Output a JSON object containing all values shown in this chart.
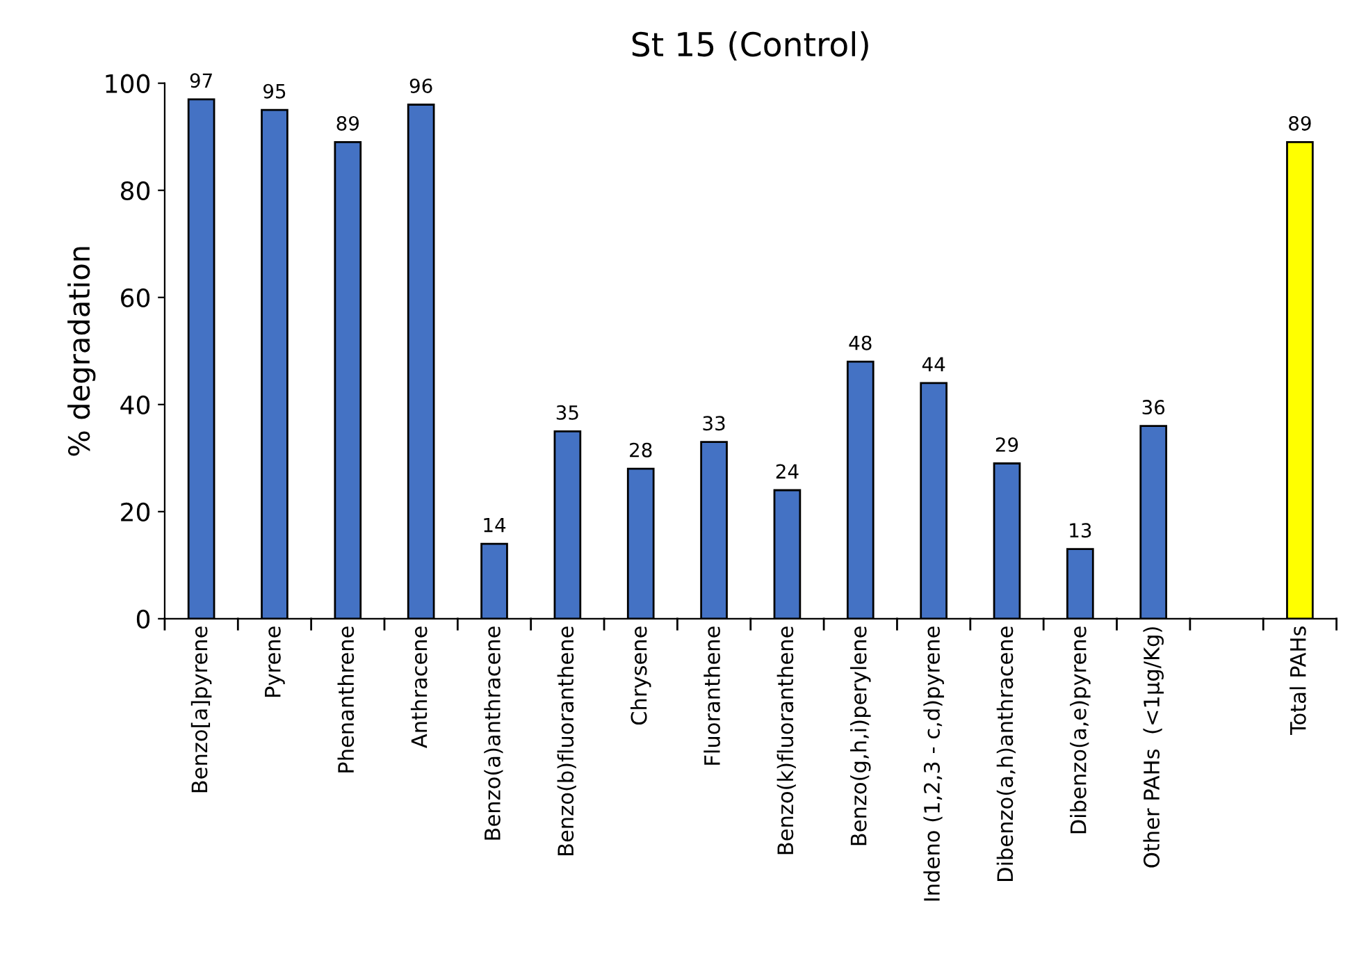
{
  "chart_data": {
    "type": "bar",
    "title": "St 15 (Control)",
    "ylabel": "% degradation",
    "categories": [
      "Benzo[a]pyrene",
      "Pyrene",
      "Phenanthrene",
      "Anthracene",
      "Benzo(a)anthracene",
      "Benzo(b)fluoranthene",
      "Chrysene",
      "Fluoranthene",
      "Benzo(k)fluoranthene",
      "Benzo(g,h,i)perylene",
      "Indeno (1,2,3 - c,d)pyrene",
      "Dibenzo(a,h)anthracene",
      "Dibenzo(a,e)pyrene",
      "Other PAHs  (<1µg/Kg)",
      null,
      "Total PAHs"
    ],
    "values": [
      97,
      95,
      89,
      96,
      14,
      35,
      28,
      33,
      24,
      48,
      44,
      29,
      13,
      36,
      null,
      89
    ],
    "colors": [
      "#4472c4",
      "#4472c4",
      "#4472c4",
      "#4472c4",
      "#4472c4",
      "#4472c4",
      "#4472c4",
      "#4472c4",
      "#4472c4",
      "#4472c4",
      "#4472c4",
      "#4472c4",
      "#4472c4",
      "#4472c4",
      "#4472c4",
      "#ffff00"
    ],
    "ylim": [
      0,
      100
    ],
    "yticks": [
      0,
      20,
      40,
      60,
      80,
      100
    ],
    "data_labels": true,
    "grid": false,
    "legend": false
  }
}
